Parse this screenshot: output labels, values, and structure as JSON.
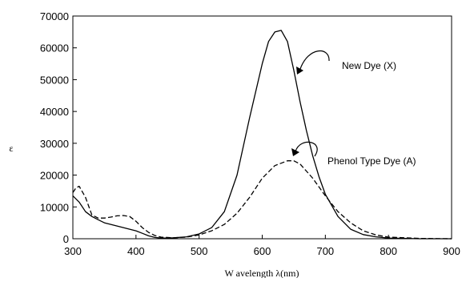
{
  "chart_data": {
    "type": "line",
    "title": "",
    "xlabel": "W avelength λ(nm)",
    "ylabel": "ε",
    "xlim": [
      300,
      900
    ],
    "ylim": [
      0,
      70000
    ],
    "xticks": [
      300,
      400,
      500,
      600,
      700,
      800,
      900
    ],
    "yticks": [
      0,
      10000,
      20000,
      30000,
      40000,
      50000,
      60000,
      70000
    ],
    "grid": false,
    "legend": "none",
    "series": [
      {
        "name": "New Dye (X)",
        "style": "solid",
        "color": "#000000",
        "x": [
          300,
          310,
          320,
          330,
          340,
          350,
          360,
          370,
          380,
          390,
          400,
          410,
          420,
          430,
          440,
          450,
          460,
          480,
          500,
          520,
          540,
          560,
          580,
          600,
          610,
          620,
          630,
          640,
          650,
          660,
          670,
          680,
          690,
          700,
          720,
          740,
          760,
          780,
          800,
          850,
          900
        ],
        "y": [
          13500,
          11500,
          8500,
          7000,
          6000,
          5000,
          4500,
          4000,
          3500,
          3000,
          2500,
          1700,
          900,
          400,
          200,
          200,
          300,
          600,
          1500,
          3500,
          8500,
          20000,
          38000,
          55000,
          62000,
          65000,
          65500,
          62000,
          53000,
          43000,
          34000,
          26000,
          19500,
          14000,
          7000,
          3000,
          1300,
          600,
          200,
          0,
          0
        ]
      },
      {
        "name": "Phenol Type Dye (A)",
        "style": "dashed",
        "color": "#000000",
        "x": [
          300,
          305,
          310,
          320,
          330,
          340,
          350,
          360,
          370,
          380,
          390,
          400,
          410,
          420,
          430,
          440,
          460,
          480,
          500,
          520,
          540,
          560,
          580,
          600,
          620,
          640,
          650,
          660,
          680,
          700,
          720,
          740,
          760,
          780,
          800,
          850,
          900
        ],
        "y": [
          14500,
          16000,
          16500,
          13000,
          7500,
          6500,
          6500,
          6800,
          7200,
          7300,
          7000,
          5500,
          3500,
          2000,
          1000,
          500,
          300,
          500,
          1200,
          2500,
          4500,
          8000,
          13000,
          19000,
          23000,
          24500,
          24500,
          23500,
          19000,
          13500,
          8500,
          5000,
          2500,
          1200,
          500,
          100,
          0
        ]
      }
    ],
    "annotations": [
      {
        "text": "New Dye (X)",
        "points_to_x": 650,
        "points_to_y": 53000
      },
      {
        "text": "Phenol Type Dye (A)",
        "points_to_x": 660,
        "points_to_y": 25000
      }
    ]
  }
}
